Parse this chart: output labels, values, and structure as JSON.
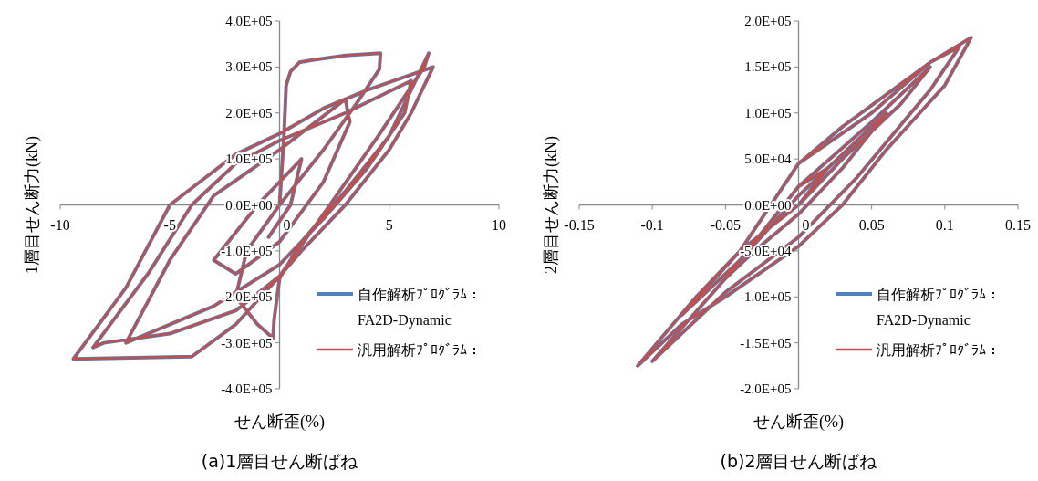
{
  "chart_data": [
    {
      "type": "line",
      "title": "(a)1層目せん断ばね",
      "xlabel": "せん断歪(%)",
      "ylabel": "1層目せん断力(kN)",
      "xlim": [
        -10,
        10
      ],
      "xticks": [
        -10,
        -5,
        0,
        5,
        10
      ],
      "ylim": [
        -400000,
        400000
      ],
      "yticks": [
        {
          "value": -400000,
          "label": "-4.0E+05"
        },
        {
          "value": -300000,
          "label": "-3.0E+05"
        },
        {
          "value": -200000,
          "label": "-2.0E+05"
        },
        {
          "value": -100000,
          "label": "-1.0E+05"
        },
        {
          "value": 0,
          "label": "0.0E+00"
        },
        {
          "value": 100000,
          "label": "1.0E+05"
        },
        {
          "value": 200000,
          "label": "2.0E+05"
        },
        {
          "value": 300000,
          "label": "3.0E+05"
        },
        {
          "value": 400000,
          "label": "4.0E+05"
        }
      ],
      "legend": "bottom right",
      "grid": false,
      "marker": "none",
      "line_style": "solid",
      "x": [
        0,
        0.2,
        0.3,
        0.5,
        0.9,
        1.5,
        3,
        4.6,
        4.55,
        3.5,
        2,
        0,
        -1.5,
        -2,
        -1,
        -0.3,
        -0.25,
        0,
        1,
        3,
        5,
        6.8,
        6.6,
        4.5,
        2,
        0,
        -2,
        -4,
        -9.4,
        -7,
        -5,
        -2,
        0,
        2,
        4,
        7,
        6,
        5,
        3,
        1,
        0,
        -2,
        -5,
        -8,
        -8.5,
        -6,
        -4,
        -2,
        0,
        3,
        6,
        5.7,
        4,
        2,
        0,
        -3,
        -7,
        -5,
        -3,
        0,
        3,
        3.2,
        2,
        0,
        -2,
        -3,
        -1,
        0,
        1,
        0.5,
        -0.5
      ],
      "series": [
        {
          "name": "自作解析ﾌﾟﾛｸﾞﾗﾑ：FA2D-Dynamic",
          "color": "#4f81bd",
          "values": [
            0,
            150000,
            260000,
            290000,
            310000,
            315000,
            325000,
            330000,
            295000,
            220000,
            120000,
            0,
            -100000,
            -200000,
            -260000,
            -290000,
            -250000,
            -160000,
            -80000,
            30000,
            150000,
            330000,
            300000,
            150000,
            -20000,
            -155000,
            -260000,
            -330000,
            -335000,
            -180000,
            0,
            110000,
            155000,
            210000,
            250000,
            300000,
            200000,
            120000,
            0,
            -100000,
            -155000,
            -230000,
            -280000,
            -300000,
            -310000,
            -150000,
            0,
            90000,
            140000,
            200000,
            270000,
            200000,
            80000,
            -30000,
            -130000,
            -220000,
            -300000,
            -120000,
            20000,
            120000,
            230000,
            180000,
            50000,
            -80000,
            -150000,
            -120000,
            0,
            50000,
            100000,
            0,
            -70000
          ]
        },
        {
          "name": "汎用解析ﾌﾟﾛｸﾞﾗﾑ：",
          "color": "#c0504d",
          "values": [
            0,
            150000,
            260000,
            290000,
            310000,
            315000,
            325000,
            330000,
            295000,
            220000,
            120000,
            0,
            -100000,
            -200000,
            -260000,
            -290000,
            -250000,
            -160000,
            -80000,
            30000,
            150000,
            330000,
            300000,
            150000,
            -20000,
            -155000,
            -260000,
            -330000,
            -335000,
            -180000,
            0,
            110000,
            155000,
            210000,
            250000,
            300000,
            200000,
            120000,
            0,
            -100000,
            -155000,
            -230000,
            -280000,
            -300000,
            -310000,
            -150000,
            0,
            90000,
            140000,
            200000,
            270000,
            200000,
            80000,
            -30000,
            -130000,
            -220000,
            -300000,
            -120000,
            20000,
            120000,
            230000,
            180000,
            50000,
            -80000,
            -150000,
            -120000,
            0,
            50000,
            100000,
            0,
            -70000
          ]
        }
      ]
    },
    {
      "type": "line",
      "title": "(b)2層目せん断ばね",
      "xlabel": "せん断歪(%)",
      "ylabel": "2層目せん断力(kN)",
      "xlim": [
        -0.15,
        0.15
      ],
      "xticks": [
        -0.15,
        -0.1,
        -0.05,
        0,
        0.05,
        0.1,
        0.15
      ],
      "ylim": [
        -200000,
        200000
      ],
      "yticks": [
        {
          "value": -200000,
          "label": "-2.0E+05"
        },
        {
          "value": -150000,
          "label": "-1.5E+05"
        },
        {
          "value": -100000,
          "label": "-1.0E+05"
        },
        {
          "value": -50000,
          "label": "-5.0E+04"
        },
        {
          "value": 0,
          "label": "0.0E+00"
        },
        {
          "value": 50000,
          "label": "5.0E+04"
        },
        {
          "value": 100000,
          "label": "1.0E+05"
        },
        {
          "value": 150000,
          "label": "1.5E+05"
        },
        {
          "value": 200000,
          "label": "2.0E+05"
        }
      ],
      "legend": "bottom right",
      "grid": false,
      "marker": "none",
      "line_style": "solid",
      "x": [
        0,
        0.03,
        0.06,
        0.09,
        0.118,
        0.1,
        0.06,
        0.03,
        0,
        -0.05,
        -0.08,
        -0.11,
        -0.07,
        -0.04,
        0,
        0.05,
        0.09,
        0.11,
        0.09,
        0.04,
        0,
        -0.05,
        -0.1,
        -0.05,
        0,
        0.05,
        0.09,
        0.07,
        0.03,
        0,
        -0.04,
        -0.08,
        -0.04,
        0,
        0.04,
        0.06,
        0.03,
        0,
        -0.03,
        -0.05,
        -0.02,
        0,
        0.02,
        0
      ],
      "series": [
        {
          "name": "自作解析ﾌﾟﾛｸﾞﾗﾑ：FA2D-Dynamic",
          "color": "#4f81bd",
          "values": [
            45000,
            85000,
            120000,
            155000,
            182000,
            130000,
            60000,
            0,
            -45000,
            -100000,
            -130000,
            -175000,
            -100000,
            -50000,
            45000,
            100000,
            155000,
            172000,
            125000,
            30000,
            -35000,
            -95000,
            -170000,
            -80000,
            20000,
            90000,
            150000,
            110000,
            50000,
            0,
            -50000,
            -120000,
            -60000,
            10000,
            70000,
            100000,
            40000,
            -10000,
            -50000,
            -80000,
            -20000,
            20000,
            40000,
            0
          ]
        },
        {
          "name": "汎用解析ﾌﾟﾛｸﾞﾗﾑ：",
          "color": "#c0504d",
          "values": [
            45000,
            85000,
            120000,
            155000,
            182000,
            130000,
            60000,
            0,
            -45000,
            -100000,
            -130000,
            -175000,
            -100000,
            -50000,
            45000,
            100000,
            155000,
            172000,
            125000,
            30000,
            -35000,
            -95000,
            -170000,
            -80000,
            20000,
            90000,
            150000,
            110000,
            50000,
            0,
            -50000,
            -120000,
            -60000,
            10000,
            70000,
            100000,
            40000,
            -10000,
            -50000,
            -80000,
            -20000,
            20000,
            40000,
            0
          ]
        }
      ]
    }
  ]
}
